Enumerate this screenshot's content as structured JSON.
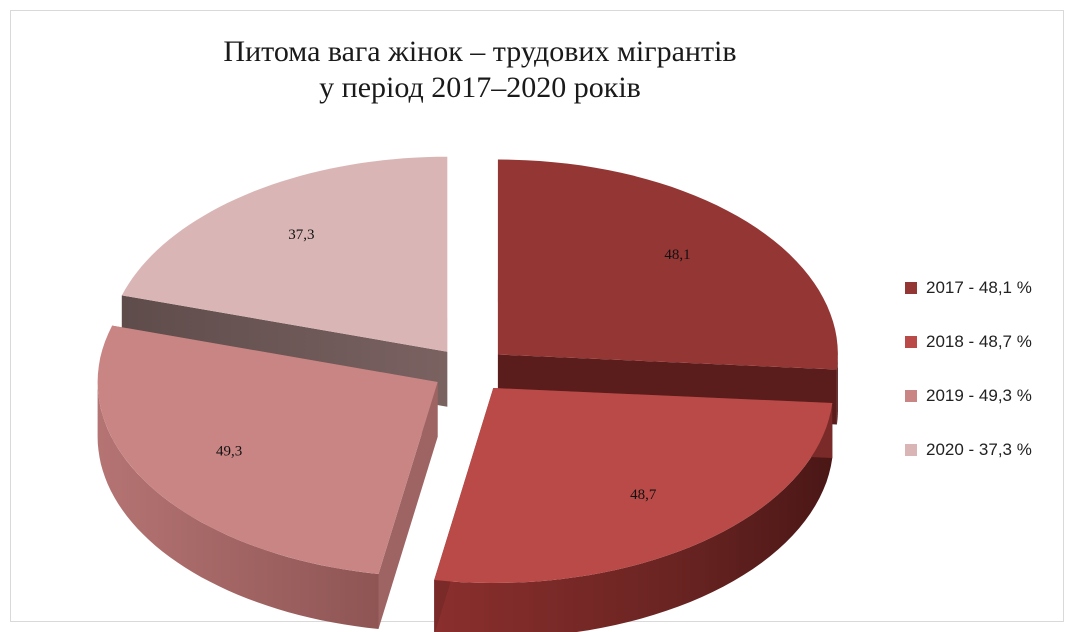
{
  "chart_data": {
    "type": "pie",
    "title_line1": "Питома вага жінок – трудових мігрантів",
    "title_line2": "у період 2017–2020 років",
    "categories": [
      "2017",
      "2018",
      "2019",
      "2020"
    ],
    "values": [
      48.1,
      48.7,
      49.3,
      37.3
    ],
    "data_labels": [
      "48,1",
      "48,7",
      "49,3",
      "37,3"
    ],
    "legend_labels": [
      "2017 - 48,1 %",
      "2018 - 48,7 %",
      "2019 - 49,3 %",
      "2020 - 37,3 %"
    ],
    "colors": [
      "#943634",
      "#b94a48",
      "#c98584",
      "#d9b6b5"
    ],
    "side_colors": [
      "#5a1d1c",
      "#7a2a29",
      "#9e6463",
      "#6b5756"
    ],
    "legend_position": "right",
    "exploded": true,
    "style": "3d"
  }
}
